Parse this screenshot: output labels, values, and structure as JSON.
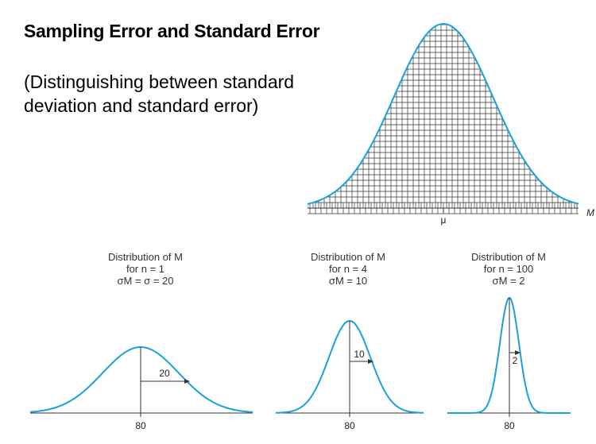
{
  "header": {
    "title": "Sampling Error and Standard Error",
    "subtitle_line1": "(Distinguishing between standard",
    "subtitle_line2": "deviation and standard error)"
  },
  "top_chart": {
    "mean_label": "μ",
    "axis_var": "M"
  },
  "distributions": [
    {
      "line1": "Distribution of M",
      "line2": "for n = 1",
      "line3": "σM = σ = 20",
      "center_label": "80",
      "arrow_label": "20"
    },
    {
      "line1": "Distribution of M",
      "line2": "for n = 4",
      "line3": "σM = 10",
      "center_label": "80",
      "arrow_label": "10"
    },
    {
      "line1": "Distribution of M",
      "line2": "for n = 100",
      "line3": "σM = 2",
      "center_label": "80",
      "arrow_label": "2"
    }
  ],
  "colors": {
    "curve": "#1aa0dc",
    "grid": "#333333",
    "axis": "#333333"
  }
}
